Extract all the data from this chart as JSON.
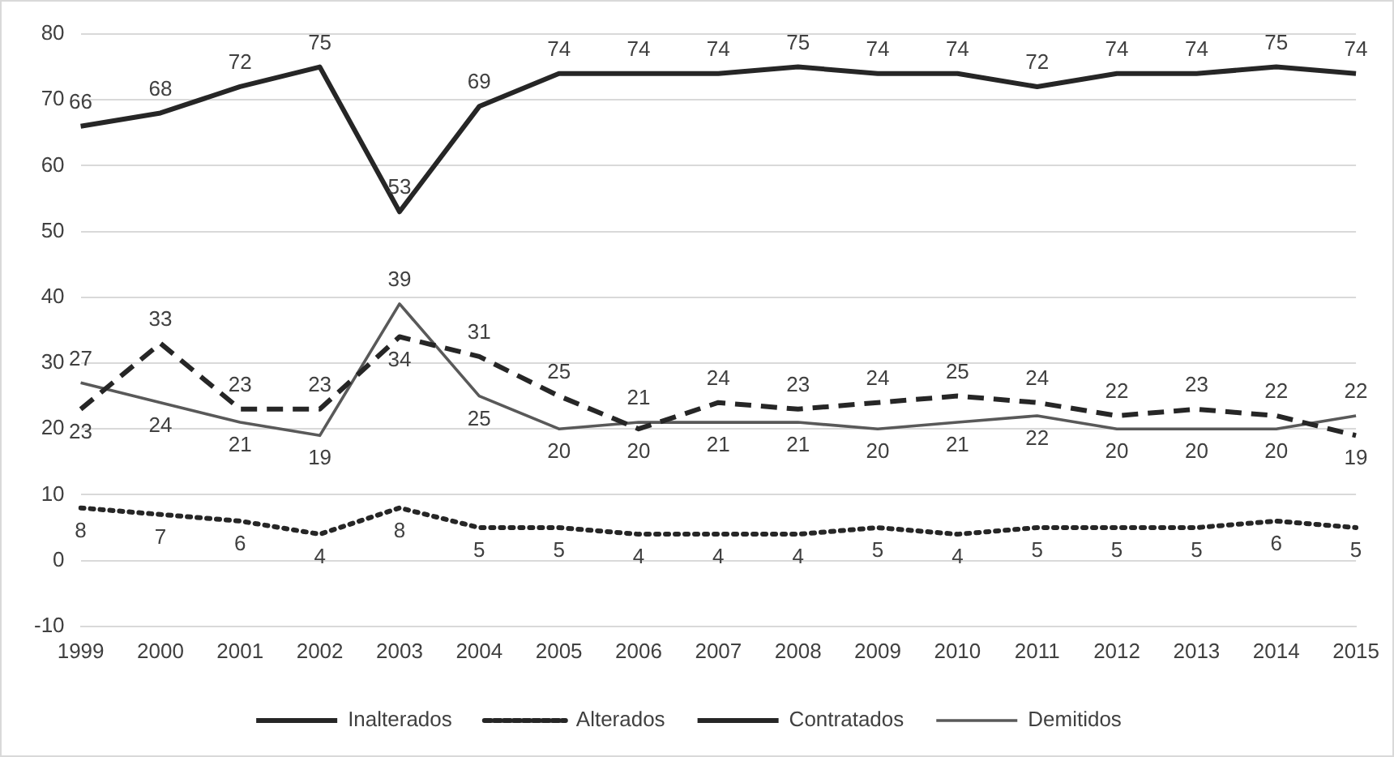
{
  "chart_data": {
    "type": "line",
    "categories": [
      "1999",
      "2000",
      "2001",
      "2002",
      "2003",
      "2004",
      "2005",
      "2006",
      "2007",
      "2008",
      "2009",
      "2010",
      "2011",
      "2012",
      "2013",
      "2014",
      "2015"
    ],
    "series": [
      {
        "name": "Inalterados",
        "color": "#262626",
        "line_style": "solid",
        "values": [
          66,
          68,
          72,
          75,
          53,
          69,
          74,
          74,
          74,
          75,
          74,
          74,
          72,
          74,
          74,
          75,
          74
        ]
      },
      {
        "name": "Alterados",
        "color": "#262626",
        "line_style": "dotted",
        "values": [
          8,
          7,
          6,
          4,
          8,
          5,
          5,
          4,
          4,
          4,
          5,
          4,
          5,
          5,
          5,
          6,
          5
        ]
      },
      {
        "name": "Contratados",
        "color": "#262626",
        "line_style": "dashed",
        "values": [
          23,
          33,
          23,
          23,
          34,
          31,
          25,
          20,
          24,
          23,
          24,
          25,
          24,
          22,
          23,
          22,
          19
        ]
      },
      {
        "name": "Demitidos",
        "color": "#595959",
        "line_style": "solid",
        "values": [
          27,
          24,
          21,
          19,
          39,
          25,
          20,
          21,
          21,
          21,
          20,
          21,
          22,
          20,
          20,
          20,
          22
        ]
      }
    ],
    "ylim": [
      -10,
      80
    ],
    "yticks": [
      -10,
      0,
      10,
      20,
      30,
      40,
      50,
      60,
      70,
      80
    ],
    "grid": "y",
    "legend": "bottom",
    "marker": "none",
    "data_labels": true
  }
}
